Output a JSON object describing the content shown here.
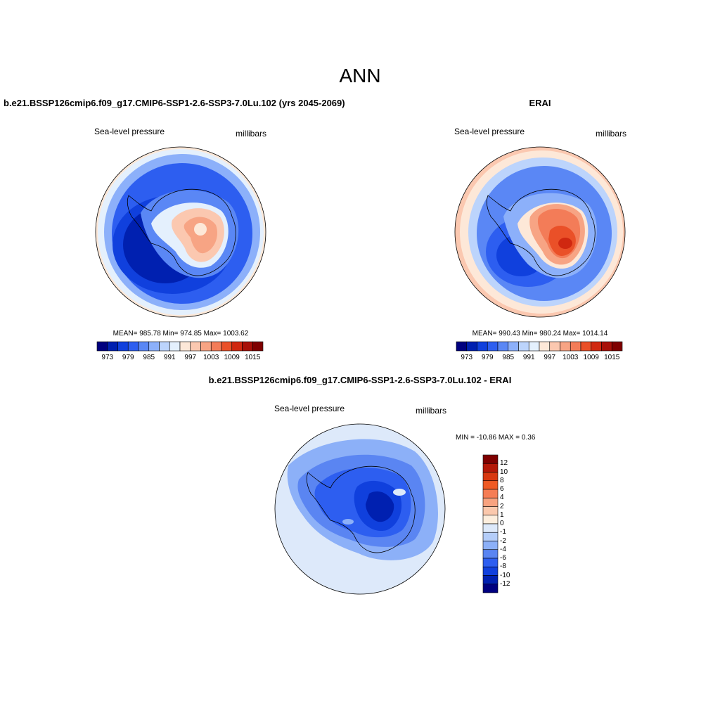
{
  "title": "ANN",
  "panels": [
    {
      "id": "model",
      "title": "b.e21.BSSP126cmip6.f09_g17.CMIP6-SSP1-2.6-SSP3-7.0Lu.102 (yrs 2045-2069)",
      "left_label": "Sea-level pressure",
      "right_label": "millibars",
      "stats": "MEAN= 985.78  Min= 974.85  Max= 1003.62",
      "ticks": [
        "973",
        "979",
        "985",
        "991",
        "997",
        "1003",
        "1009",
        "1015"
      ],
      "colors": [
        "#00007f",
        "#0020b0",
        "#1040dd",
        "#2d5ef0",
        "#5a87f5",
        "#8cb0fa",
        "#bcd4fc",
        "#e4f0fd",
        "#fde8d8",
        "#fbc8b0",
        "#f7a484",
        "#f37c58",
        "#ea5028",
        "#d02810",
        "#a81008",
        "#7f0000"
      ]
    },
    {
      "id": "obs",
      "title": "ERAI",
      "left_label": "Sea-level pressure",
      "right_label": "millibars",
      "stats": "MEAN= 990.43  Min= 980.24  Max= 1014.14",
      "ticks": [
        "973",
        "979",
        "985",
        "991",
        "997",
        "1003",
        "1009",
        "1015"
      ],
      "colors": [
        "#00007f",
        "#0020b0",
        "#1040dd",
        "#2d5ef0",
        "#5a87f5",
        "#8cb0fa",
        "#bcd4fc",
        "#e4f0fd",
        "#fde8d8",
        "#fbc8b0",
        "#f7a484",
        "#f37c58",
        "#ea5028",
        "#d02810",
        "#a81008",
        "#7f0000"
      ]
    },
    {
      "id": "diff",
      "title": "b.e21.BSSP126cmip6.f09_g17.CMIP6-SSP1-2.6-SSP3-7.0Lu.102 - ERAI",
      "left_label": "Sea-level pressure",
      "right_label": "millibars",
      "stats": "MIN = -10.86 MAX =   0.36",
      "ticks": [
        "12",
        "10",
        "8",
        "6",
        "4",
        "2",
        "1",
        "0",
        "-1",
        "-2",
        "-4",
        "-6",
        "-8",
        "-10",
        "-12"
      ],
      "colors": [
        "#7f0000",
        "#b41808",
        "#d83810",
        "#ef5a24",
        "#f57d55",
        "#f8a380",
        "#fbc8ac",
        "#fdeedd",
        "#dde9fa",
        "#b4cdf9",
        "#8cb0f8",
        "#5a85f2",
        "#2d5ef0",
        "#1040dd",
        "#0020b0",
        "#00007f"
      ]
    }
  ]
}
